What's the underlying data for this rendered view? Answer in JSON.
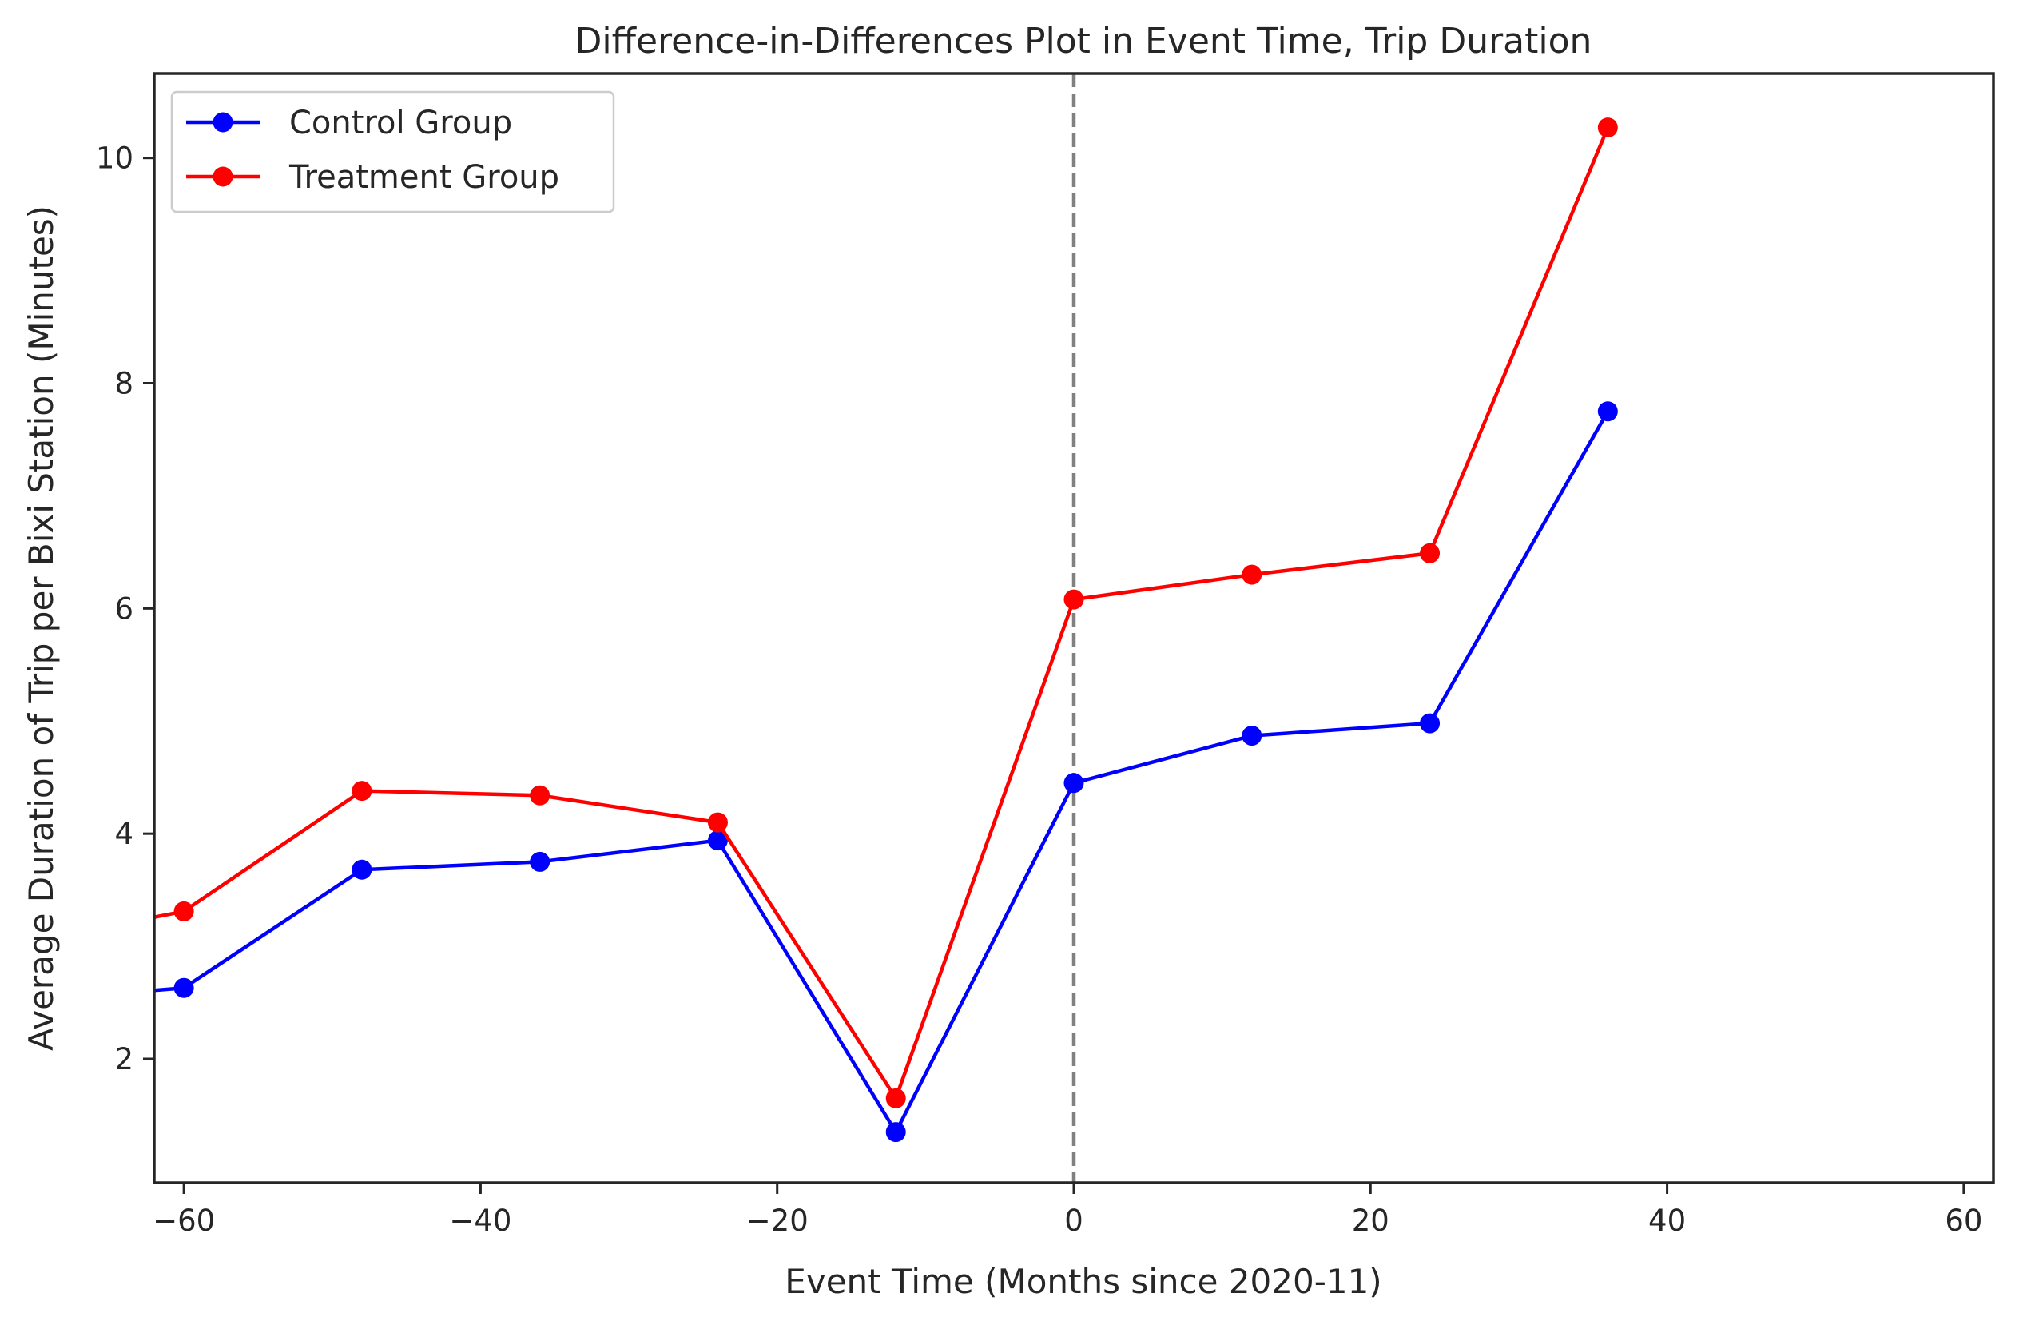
{
  "chart_data": {
    "type": "line",
    "title": "Difference-in-Differences Plot in Event Time, Trip Duration",
    "xlabel": "Event Time (Months since 2020-11)",
    "ylabel": "Average Duration of Trip per Bixi Station (Minutes)",
    "xlim": [
      -62,
      62
    ],
    "ylim": [
      0.9,
      10.75
    ],
    "xticks": [
      -60,
      -40,
      -20,
      0,
      20,
      40,
      60
    ],
    "xtick_labels": [
      "−60",
      "−40",
      "−20",
      "0",
      "20",
      "40",
      "60"
    ],
    "yticks": [
      2,
      4,
      6,
      8,
      10
    ],
    "ytick_labels": [
      "2",
      "4",
      "6",
      "8",
      "10"
    ],
    "grid": false,
    "legend_position": "top-left",
    "vline": {
      "x": 0,
      "style": "dashed",
      "color": "#808080"
    },
    "series": [
      {
        "name": "Control Group",
        "color": "#0000ff",
        "x": [
          -72,
          -60,
          -48,
          -36,
          -24,
          -12,
          0,
          12,
          24,
          36
        ],
        "y": [
          2.5,
          2.63,
          3.68,
          3.75,
          3.94,
          1.35,
          4.45,
          4.87,
          4.98,
          7.75
        ]
      },
      {
        "name": "Treatment Group",
        "color": "#ff0000",
        "x": [
          -72,
          -60,
          -48,
          -36,
          -24,
          -12,
          0,
          12,
          24,
          36
        ],
        "y": [
          3.0,
          3.31,
          4.38,
          4.34,
          4.1,
          1.65,
          6.08,
          6.3,
          6.49,
          10.27
        ]
      }
    ]
  }
}
